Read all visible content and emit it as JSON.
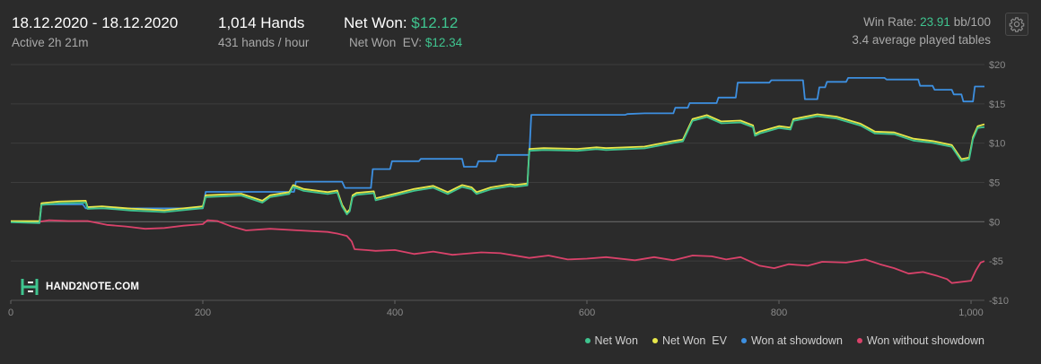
{
  "header": {
    "date_range": "18.12.2020 - 18.12.2020",
    "active_time": "Active 2h 21m",
    "hands": "1,014 Hands",
    "hands_rate": "431 hands / hour",
    "net_won_label": "Net Won:",
    "net_won_value": "$12.12",
    "net_won_ev_label": "Net Won  EV:",
    "net_won_ev_value": "$12.34",
    "win_rate_label": "Win Rate:",
    "win_rate_value": "23.91",
    "win_rate_unit": "bb/100",
    "avg_tables": "3.4 average played tables"
  },
  "logo": {
    "text": "HAND2NOTE.COM"
  },
  "icons": {
    "settings": "gear-icon",
    "logo": "hand2note-logo-icon"
  },
  "colors": {
    "net_won": "#3fc48f",
    "net_won_ev": "#e8e84a",
    "won_at_showdown": "#3d8fe0",
    "won_without_showdown": "#d9426a",
    "background": "#2b2b2b",
    "gridline": "#3d3d3d",
    "zero_line": "#666666"
  },
  "legend": [
    {
      "label": "Net Won",
      "color": "#3fc48f"
    },
    {
      "label": "Net Won  EV",
      "color": "#e8e84a"
    },
    {
      "label": "Won at showdown",
      "color": "#3d8fe0"
    },
    {
      "label": "Won without showdown",
      "color": "#d9426a"
    }
  ],
  "chart_data": {
    "type": "line",
    "xlim": [
      0,
      1014
    ],
    "ylim": [
      -10,
      20
    ],
    "x_ticks": [
      0,
      200,
      400,
      600,
      800,
      1000
    ],
    "x_tick_labels": [
      "0",
      "200",
      "400",
      "600",
      "800",
      "1,000"
    ],
    "y_ticks": [
      20,
      15,
      10,
      5,
      0,
      -5,
      -10
    ],
    "y_tick_labels": [
      "$20",
      "$15",
      "$10",
      "$5",
      "$0",
      "-$5",
      "-$10"
    ],
    "grid": true,
    "legend_position": "bottom-right",
    "series": [
      {
        "name": "Net Won",
        "color": "#3fc48f",
        "points": [
          [
            0,
            0
          ],
          [
            30,
            -0.1
          ],
          [
            32,
            2.2
          ],
          [
            50,
            2.4
          ],
          [
            78,
            2.5
          ],
          [
            80,
            1.7
          ],
          [
            95,
            1.8
          ],
          [
            125,
            1.5
          ],
          [
            160,
            1.3
          ],
          [
            200,
            1.8
          ],
          [
            203,
            3.2
          ],
          [
            240,
            3.4
          ],
          [
            262,
            2.5
          ],
          [
            270,
            3.2
          ],
          [
            290,
            3.6
          ],
          [
            294,
            4.5
          ],
          [
            305,
            4.0
          ],
          [
            330,
            3.6
          ],
          [
            340,
            3.8
          ],
          [
            345,
            2.0
          ],
          [
            350,
            1.0
          ],
          [
            353,
            1.4
          ],
          [
            356,
            3.2
          ],
          [
            360,
            3.5
          ],
          [
            378,
            3.7
          ],
          [
            380,
            2.8
          ],
          [
            400,
            3.4
          ],
          [
            420,
            4.0
          ],
          [
            440,
            4.4
          ],
          [
            455,
            3.6
          ],
          [
            470,
            4.5
          ],
          [
            480,
            4.2
          ],
          [
            485,
            3.6
          ],
          [
            500,
            4.2
          ],
          [
            520,
            4.6
          ],
          [
            525,
            4.5
          ],
          [
            538,
            4.7
          ],
          [
            540,
            9.1
          ],
          [
            555,
            9.2
          ],
          [
            590,
            9.1
          ],
          [
            610,
            9.3
          ],
          [
            620,
            9.2
          ],
          [
            660,
            9.4
          ],
          [
            690,
            10.1
          ],
          [
            700,
            10.3
          ],
          [
            710,
            12.9
          ],
          [
            725,
            13.4
          ],
          [
            740,
            12.6
          ],
          [
            760,
            12.7
          ],
          [
            773,
            12.1
          ],
          [
            775,
            11.0
          ],
          [
            780,
            11.3
          ],
          [
            800,
            12.0
          ],
          [
            812,
            11.8
          ],
          [
            815,
            12.9
          ],
          [
            840,
            13.5
          ],
          [
            860,
            13.2
          ],
          [
            885,
            12.3
          ],
          [
            900,
            11.3
          ],
          [
            920,
            11.2
          ],
          [
            940,
            10.4
          ],
          [
            960,
            10.1
          ],
          [
            980,
            9.6
          ],
          [
            990,
            7.8
          ],
          [
            998,
            8.0
          ],
          [
            1002,
            10.6
          ],
          [
            1007,
            12.0
          ],
          [
            1014,
            12.12
          ]
        ]
      },
      {
        "name": "Net Won  EV",
        "color": "#e8e84a",
        "points": [
          [
            0,
            0
          ],
          [
            30,
            0
          ],
          [
            32,
            2.3
          ],
          [
            50,
            2.5
          ],
          [
            78,
            2.6
          ],
          [
            80,
            1.8
          ],
          [
            95,
            1.9
          ],
          [
            125,
            1.6
          ],
          [
            160,
            1.4
          ],
          [
            200,
            1.9
          ],
          [
            203,
            3.3
          ],
          [
            240,
            3.5
          ],
          [
            262,
            2.6
          ],
          [
            270,
            3.3
          ],
          [
            290,
            3.7
          ],
          [
            294,
            4.6
          ],
          [
            305,
            4.1
          ],
          [
            330,
            3.7
          ],
          [
            340,
            3.9
          ],
          [
            345,
            2.1
          ],
          [
            350,
            1.1
          ],
          [
            353,
            1.5
          ],
          [
            356,
            3.3
          ],
          [
            360,
            3.6
          ],
          [
            378,
            3.8
          ],
          [
            380,
            2.9
          ],
          [
            400,
            3.5
          ],
          [
            420,
            4.1
          ],
          [
            440,
            4.5
          ],
          [
            455,
            3.7
          ],
          [
            470,
            4.6
          ],
          [
            480,
            4.3
          ],
          [
            485,
            3.7
          ],
          [
            500,
            4.3
          ],
          [
            520,
            4.7
          ],
          [
            525,
            4.6
          ],
          [
            538,
            4.8
          ],
          [
            540,
            9.2
          ],
          [
            555,
            9.3
          ],
          [
            590,
            9.2
          ],
          [
            610,
            9.4
          ],
          [
            620,
            9.3
          ],
          [
            660,
            9.5
          ],
          [
            690,
            10.2
          ],
          [
            700,
            10.4
          ],
          [
            710,
            13.0
          ],
          [
            725,
            13.5
          ],
          [
            740,
            12.7
          ],
          [
            760,
            12.8
          ],
          [
            773,
            12.2
          ],
          [
            775,
            11.1
          ],
          [
            780,
            11.4
          ],
          [
            800,
            12.1
          ],
          [
            812,
            11.9
          ],
          [
            815,
            13.0
          ],
          [
            840,
            13.6
          ],
          [
            860,
            13.3
          ],
          [
            885,
            12.4
          ],
          [
            900,
            11.4
          ],
          [
            920,
            11.3
          ],
          [
            940,
            10.5
          ],
          [
            960,
            10.2
          ],
          [
            980,
            9.7
          ],
          [
            990,
            7.9
          ],
          [
            998,
            8.1
          ],
          [
            1002,
            10.7
          ],
          [
            1007,
            12.1
          ],
          [
            1014,
            12.34
          ]
        ]
      },
      {
        "name": "Won at showdown",
        "color": "#3d8fe0",
        "points": [
          [
            0,
            0
          ],
          [
            30,
            0
          ],
          [
            32,
            2.2
          ],
          [
            75,
            2.2
          ],
          [
            78,
            1.7
          ],
          [
            200,
            1.7
          ],
          [
            203,
            3.8
          ],
          [
            295,
            3.8
          ],
          [
            297,
            5.1
          ],
          [
            345,
            5.1
          ],
          [
            348,
            4.3
          ],
          [
            375,
            4.3
          ],
          [
            377,
            6.7
          ],
          [
            395,
            6.7
          ],
          [
            397,
            7.7
          ],
          [
            425,
            7.7
          ],
          [
            427,
            8.0
          ],
          [
            470,
            8.0
          ],
          [
            472,
            7.0
          ],
          [
            485,
            7.0
          ],
          [
            487,
            7.7
          ],
          [
            505,
            7.7
          ],
          [
            507,
            8.5
          ],
          [
            540,
            8.5
          ],
          [
            542,
            13.6
          ],
          [
            640,
            13.6
          ],
          [
            642,
            13.7
          ],
          [
            660,
            13.8
          ],
          [
            690,
            13.8
          ],
          [
            692,
            14.5
          ],
          [
            705,
            14.5
          ],
          [
            707,
            15.1
          ],
          [
            735,
            15.1
          ],
          [
            737,
            15.8
          ],
          [
            755,
            15.8
          ],
          [
            757,
            17.7
          ],
          [
            790,
            17.7
          ],
          [
            792,
            18.0
          ],
          [
            825,
            18.0
          ],
          [
            827,
            15.6
          ],
          [
            840,
            15.6
          ],
          [
            842,
            17.1
          ],
          [
            848,
            17.1
          ],
          [
            850,
            17.8
          ],
          [
            870,
            17.8
          ],
          [
            872,
            18.3
          ],
          [
            910,
            18.3
          ],
          [
            912,
            18.1
          ],
          [
            945,
            18.1
          ],
          [
            947,
            17.3
          ],
          [
            960,
            17.3
          ],
          [
            962,
            16.8
          ],
          [
            980,
            16.8
          ],
          [
            982,
            16.2
          ],
          [
            990,
            16.2
          ],
          [
            992,
            15.3
          ],
          [
            1002,
            15.3
          ],
          [
            1004,
            17.2
          ],
          [
            1014,
            17.2
          ]
        ]
      },
      {
        "name": "Won without showdown",
        "color": "#d9426a",
        "points": [
          [
            0,
            0
          ],
          [
            30,
            0
          ],
          [
            40,
            0.2
          ],
          [
            60,
            0.1
          ],
          [
            80,
            0.1
          ],
          [
            100,
            -0.4
          ],
          [
            120,
            -0.6
          ],
          [
            140,
            -0.9
          ],
          [
            160,
            -0.8
          ],
          [
            180,
            -0.5
          ],
          [
            200,
            -0.3
          ],
          [
            205,
            0.2
          ],
          [
            215,
            0.1
          ],
          [
            230,
            -0.6
          ],
          [
            245,
            -1.1
          ],
          [
            270,
            -0.9
          ],
          [
            300,
            -1.1
          ],
          [
            330,
            -1.3
          ],
          [
            340,
            -1.5
          ],
          [
            350,
            -1.8
          ],
          [
            355,
            -2.5
          ],
          [
            358,
            -3.5
          ],
          [
            370,
            -3.6
          ],
          [
            380,
            -3.7
          ],
          [
            400,
            -3.6
          ],
          [
            420,
            -4.1
          ],
          [
            440,
            -3.8
          ],
          [
            460,
            -4.2
          ],
          [
            490,
            -3.9
          ],
          [
            510,
            -4.0
          ],
          [
            540,
            -4.6
          ],
          [
            560,
            -4.3
          ],
          [
            580,
            -4.8
          ],
          [
            600,
            -4.7
          ],
          [
            620,
            -4.5
          ],
          [
            650,
            -4.9
          ],
          [
            670,
            -4.5
          ],
          [
            690,
            -4.9
          ],
          [
            710,
            -4.3
          ],
          [
            730,
            -4.4
          ],
          [
            745,
            -4.8
          ],
          [
            760,
            -4.5
          ],
          [
            780,
            -5.6
          ],
          [
            795,
            -5.9
          ],
          [
            810,
            -5.4
          ],
          [
            830,
            -5.6
          ],
          [
            845,
            -5.1
          ],
          [
            870,
            -5.2
          ],
          [
            890,
            -4.8
          ],
          [
            905,
            -5.4
          ],
          [
            920,
            -5.9
          ],
          [
            935,
            -6.6
          ],
          [
            950,
            -6.4
          ],
          [
            965,
            -6.9
          ],
          [
            975,
            -7.3
          ],
          [
            980,
            -7.8
          ],
          [
            1000,
            -7.5
          ],
          [
            1005,
            -6.2
          ],
          [
            1010,
            -5.2
          ],
          [
            1014,
            -5.0
          ]
        ]
      }
    ]
  }
}
